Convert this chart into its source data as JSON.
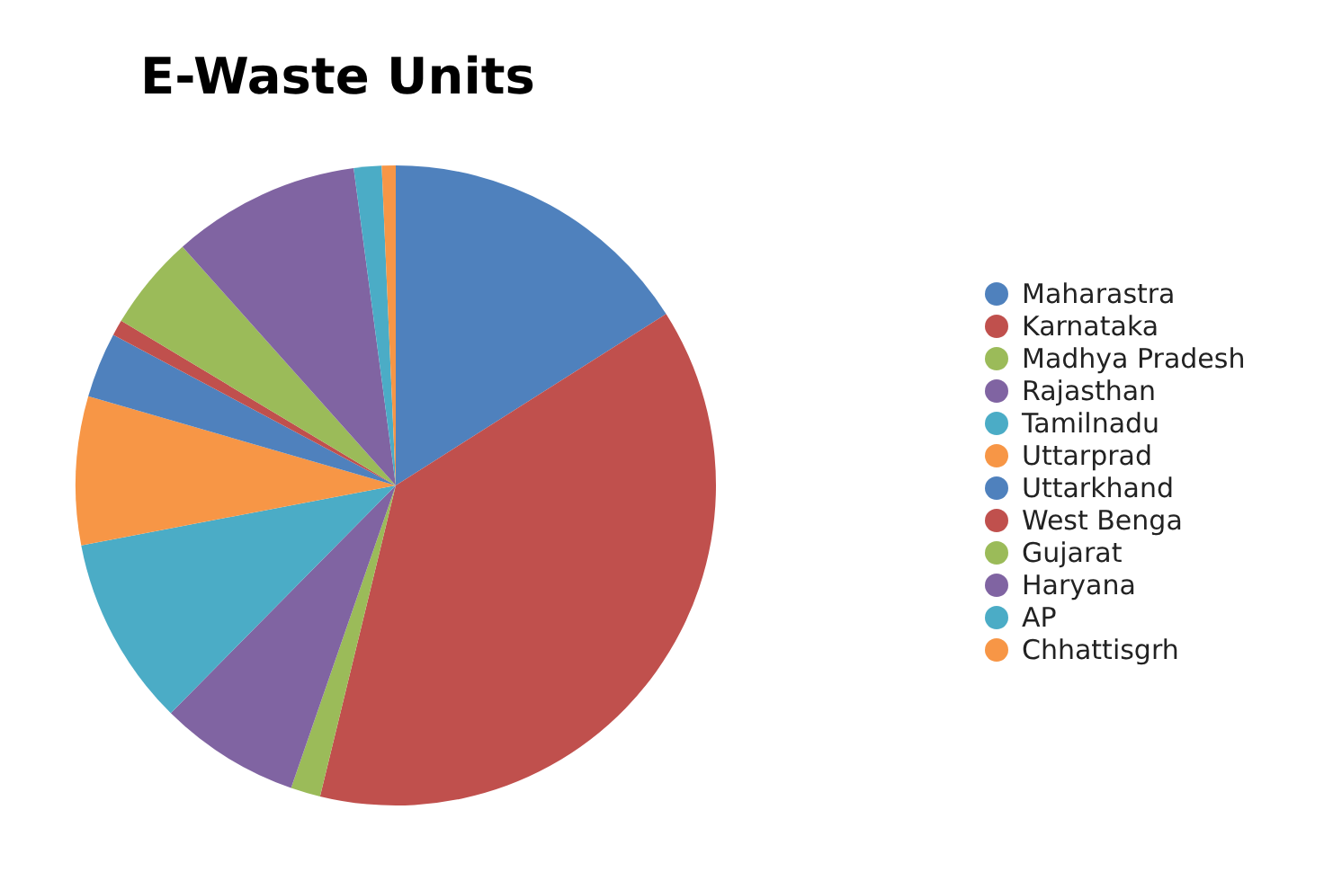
{
  "chart_data": {
    "type": "pie",
    "title": "E-Waste Units",
    "categories": [
      "Maharastra",
      "Karnataka",
      "Madhya Pradesh",
      "Rajasthan",
      "Tamilnadu",
      "Uttarprad",
      "Uttarkhand",
      "West Benga",
      "Gujarat",
      "Haryana",
      "AP",
      "Chhattisgrh"
    ],
    "values": [
      16,
      37.8,
      1.5,
      7.1,
      9.6,
      7.5,
      3.3,
      0.8,
      4.8,
      9.5,
      1.4,
      0.7
    ],
    "colors": [
      "#4f81bd",
      "#c0504d",
      "#9bbb59",
      "#8064a2",
      "#4bacc6",
      "#f79646",
      "#4f81bd",
      "#c0504d",
      "#9bbb59",
      "#8064a2",
      "#4bacc6",
      "#f79646"
    ],
    "legend": "right"
  }
}
